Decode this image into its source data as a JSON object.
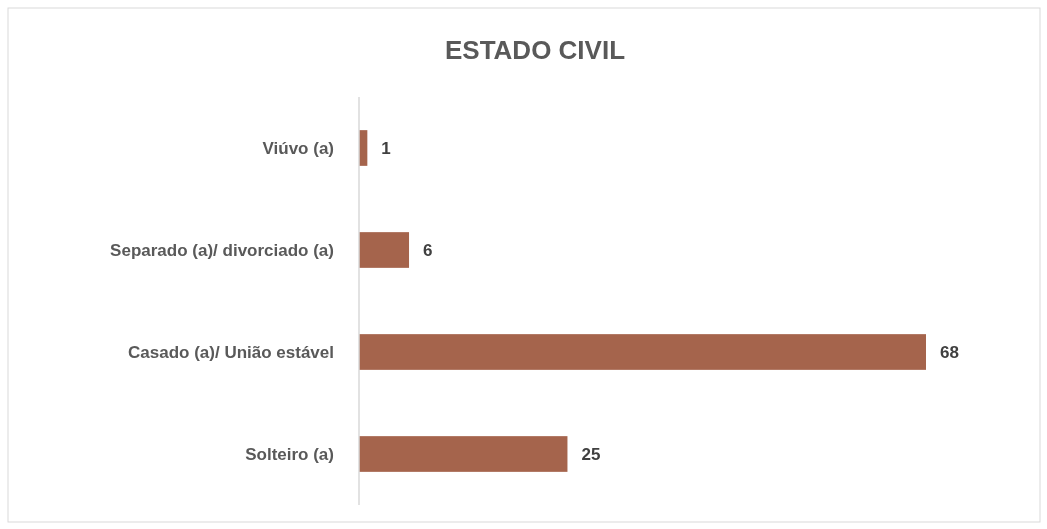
{
  "chart_data": {
    "type": "bar",
    "orientation": "horizontal",
    "title": "ESTADO CIVIL",
    "categories": [
      "Viúvo (a)",
      "Separado (a)/ divorciado (a)",
      "Casado (a)/ União estável",
      "Solteiro (a)"
    ],
    "values": [
      1,
      6,
      68,
      25
    ],
    "color": "#a5644c",
    "data_labels": true
  }
}
